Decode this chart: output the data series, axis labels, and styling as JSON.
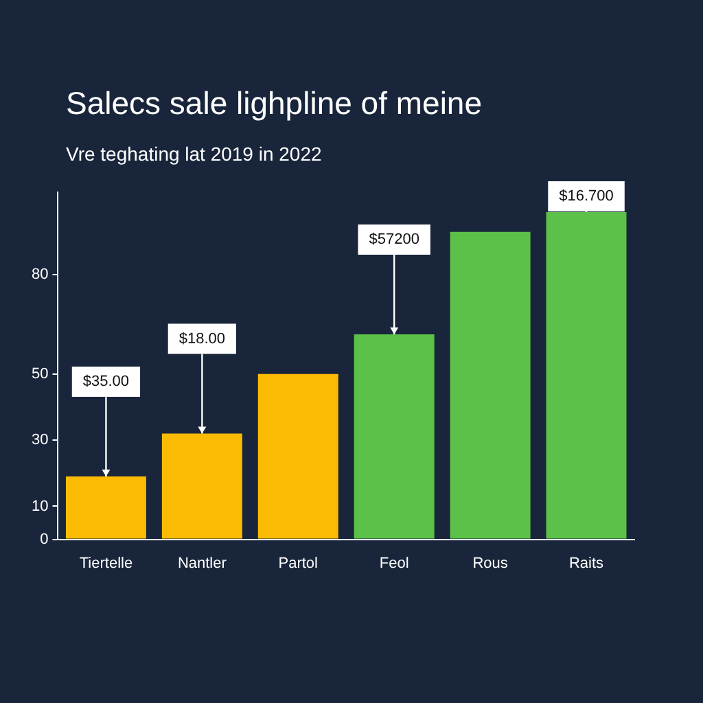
{
  "chart_data": {
    "type": "bar",
    "title": "Salecs sale lighpline of meine",
    "subtitle": "Vre teghating lat 2019 in 2022",
    "categories": [
      "Tiertelle",
      "Nantler",
      "Partol",
      "Feol",
      "Rous",
      "Raits"
    ],
    "values": [
      19,
      32,
      50,
      62,
      93,
      99
    ],
    "colors": [
      "#fbbb05",
      "#fbbb05",
      "#fbbb05",
      "#5cc149",
      "#5cc149",
      "#5cc149"
    ],
    "ylim": [
      0,
      105
    ],
    "yticks": [
      0,
      10,
      30,
      50,
      80
    ],
    "grid": false,
    "legend": false,
    "annotations": [
      {
        "text": "$35.00",
        "x": "Tiertelle",
        "y": 19
      },
      {
        "text": "$18.00",
        "x": "Nantler",
        "y": 32
      },
      {
        "text": "$57200",
        "x": "Feol",
        "y": 62
      },
      {
        "text": "$16.700",
        "x": "Raits",
        "y": 99
      }
    ]
  }
}
